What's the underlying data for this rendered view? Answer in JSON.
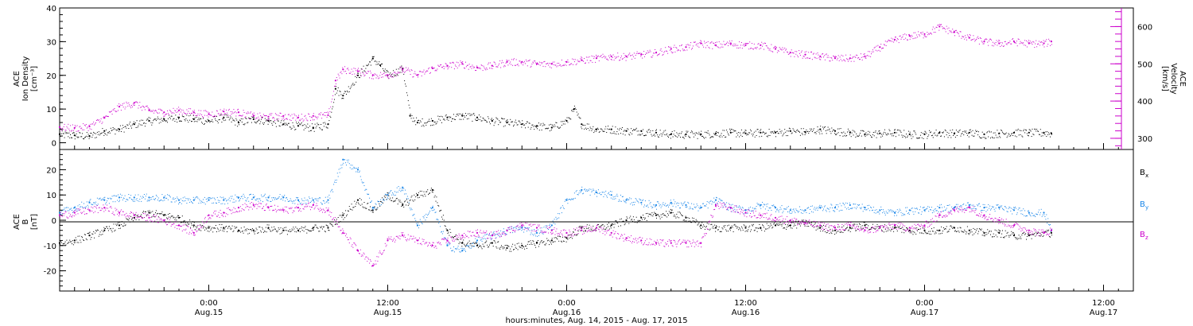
{
  "colors": {
    "density": "#000000",
    "velocity": "#cc00cc",
    "bx": "#000000",
    "by": "#1a86e8",
    "bz": "#cc00cc",
    "axis": "#000000"
  },
  "xaxis": {
    "title": "hours:minutes, Aug. 14, 2015 - Aug. 17, 2015",
    "ticks": [
      {
        "hour": 24,
        "time": "0:00",
        "date": "Aug.15"
      },
      {
        "hour": 36,
        "time": "12:00",
        "date": "Aug.15"
      },
      {
        "hour": 48,
        "time": "0:00",
        "date": "Aug.16"
      },
      {
        "hour": 60,
        "time": "12:00",
        "date": "Aug.16"
      },
      {
        "hour": 72,
        "time": "0:00",
        "date": "Aug.17"
      },
      {
        "hour": 84,
        "time": "12:00",
        "date": "Aug.17"
      }
    ]
  },
  "top_panel": {
    "left_label": [
      "ACE",
      "Ion Density",
      "[cm⁻³]"
    ],
    "right_label": [
      "ACE",
      "Velocity",
      "[km/s]"
    ],
    "left_ticks": [
      "0",
      "10",
      "20",
      "30",
      "40"
    ],
    "right_ticks": [
      "300",
      "400",
      "500",
      "600"
    ]
  },
  "bottom_panel": {
    "left_label": [
      "ACE",
      "B",
      "[nT]"
    ],
    "left_ticks": [
      "-20",
      "-10",
      "0",
      "10",
      "20"
    ],
    "legend": [
      {
        "key": "bx",
        "letter": "B",
        "sub": "x"
      },
      {
        "key": "by",
        "letter": "B",
        "sub": "y"
      },
      {
        "key": "bz",
        "letter": "B",
        "sub": "z"
      }
    ]
  },
  "chart_data": [
    {
      "type": "scatter",
      "panel": "top",
      "xlabel": "hours:minutes, Aug. 14, 2015 - Aug. 17, 2015",
      "xlim_hours_from_aug14_0000": [
        14,
        86
      ],
      "ylim_left": [
        -2,
        40
      ],
      "ylim_right": [
        270,
        650
      ],
      "series": [
        {
          "name": "Ion Density",
          "axis": "left",
          "unit": "cm^-3",
          "x_hours": [
            14,
            15,
            16,
            17,
            18,
            19,
            20,
            21,
            22,
            23,
            24,
            25,
            26,
            27,
            28,
            29,
            30,
            31,
            32,
            32.5,
            33,
            34,
            35,
            35.5,
            36,
            37,
            37.5,
            38,
            39,
            40,
            41,
            42,
            43,
            44,
            45,
            46,
            47,
            48,
            48.5,
            49,
            50,
            51,
            52,
            53,
            54,
            55,
            56,
            57,
            58,
            59,
            60,
            61,
            62,
            63,
            64,
            65,
            66,
            67,
            68,
            69,
            70,
            71,
            72,
            73,
            74,
            75,
            76,
            77,
            78,
            79,
            80,
            80.5
          ],
          "values": [
            2.5,
            2.2,
            2.0,
            3.5,
            4.0,
            5.5,
            6.5,
            7.0,
            7.5,
            7.0,
            6.5,
            7.5,
            6.0,
            7.0,
            6.5,
            5.5,
            5.0,
            4.5,
            5.5,
            16,
            14,
            20,
            25,
            23,
            20,
            22,
            8,
            6,
            6.5,
            7.5,
            8.0,
            7.5,
            6.5,
            6.0,
            5.5,
            5.0,
            4.5,
            6.5,
            10,
            5.5,
            4.0,
            4.0,
            3.5,
            3.5,
            3.0,
            2.5,
            2.5,
            2.5,
            2.8,
            3.0,
            2.8,
            3.0,
            3.0,
            3.5,
            3.2,
            4.0,
            3.5,
            3.0,
            2.5,
            2.8,
            3.0,
            2.5,
            2.5,
            3.0,
            2.8,
            3.0,
            2.5,
            2.8,
            3.0,
            3.0,
            3.0,
            2.8
          ]
        },
        {
          "name": "Velocity",
          "axis": "right",
          "unit": "km/s",
          "x_hours": [
            14,
            15,
            16,
            17,
            18,
            19,
            20,
            21,
            22,
            23,
            24,
            25,
            26,
            27,
            28,
            29,
            30,
            31,
            32,
            32.5,
            33,
            34,
            35,
            36,
            37,
            38,
            39,
            40,
            41,
            42,
            43,
            44,
            45,
            46,
            47,
            48,
            49,
            50,
            51,
            52,
            53,
            54,
            55,
            56,
            57,
            58,
            59,
            60,
            61,
            62,
            63,
            64,
            65,
            66,
            67,
            68,
            69,
            70,
            71,
            72,
            73,
            74,
            75,
            76,
            77,
            78,
            79,
            80,
            80.5
          ],
          "values": [
            330,
            328,
            332,
            355,
            385,
            395,
            375,
            370,
            375,
            370,
            365,
            372,
            370,
            360,
            358,
            360,
            356,
            360,
            362,
            455,
            485,
            480,
            470,
            470,
            485,
            470,
            488,
            495,
            500,
            490,
            495,
            505,
            505,
            500,
            500,
            505,
            510,
            515,
            520,
            520,
            525,
            530,
            540,
            545,
            555,
            550,
            555,
            550,
            550,
            540,
            530,
            525,
            520,
            515,
            515,
            520,
            545,
            565,
            575,
            580,
            600,
            585,
            570,
            560,
            555,
            560,
            555,
            555,
            560
          ]
        }
      ]
    },
    {
      "type": "scatter",
      "panel": "bottom",
      "xlim_hours_from_aug14_0000": [
        14,
        86
      ],
      "ylim": [
        -28,
        28
      ],
      "ylabel": "B [nT]",
      "series": [
        {
          "name": "Bx",
          "x_hours": [
            14,
            15,
            16,
            17,
            18,
            19,
            20,
            21,
            22,
            23,
            24,
            25,
            26,
            27,
            28,
            29,
            30,
            31,
            32,
            33,
            34,
            35,
            36,
            37,
            38,
            39,
            40,
            41,
            42,
            43,
            44,
            45,
            46,
            47,
            48,
            49,
            50,
            51,
            52,
            53,
            54,
            55,
            56,
            57,
            58,
            59,
            60,
            61,
            62,
            63,
            64,
            65,
            66,
            67,
            68,
            69,
            70,
            71,
            72,
            73,
            74,
            75,
            76,
            77,
            78,
            79,
            80,
            80.5
          ],
          "values": [
            -9,
            -8,
            -6,
            -4,
            -2,
            1,
            3,
            2,
            1,
            -2,
            -3,
            -3,
            -4,
            -4,
            -3,
            -4,
            -4,
            -3,
            -3,
            2,
            8,
            4,
            10,
            6,
            10,
            12,
            -4,
            -9,
            -10,
            -9,
            -11,
            -10,
            -9,
            -8,
            -7,
            -3,
            -3,
            -2,
            0,
            1,
            2,
            3,
            1,
            -2,
            -3,
            -3,
            -3,
            -3,
            -2,
            -2,
            -1,
            -3,
            -4,
            -3,
            -2,
            -3,
            -3,
            -4,
            -4,
            -4,
            -3,
            -4,
            -5,
            -5,
            -6,
            -6,
            -5,
            -5
          ]
        },
        {
          "name": "By",
          "x_hours": [
            14,
            15,
            16,
            17,
            18,
            19,
            20,
            21,
            22,
            23,
            24,
            25,
            26,
            27,
            28,
            29,
            30,
            31,
            32,
            33,
            34,
            35,
            36,
            37,
            38,
            39,
            40,
            41,
            42,
            43,
            44,
            45,
            46,
            47,
            48,
            49,
            50,
            51,
            52,
            53,
            54,
            55,
            56,
            57,
            58,
            59,
            60,
            61,
            62,
            63,
            64,
            65,
            66,
            67,
            68,
            69,
            70,
            71,
            72,
            73,
            74,
            75,
            76,
            77,
            78,
            79,
            80,
            80.5
          ],
          "values": [
            3,
            5,
            7,
            8,
            9,
            9,
            9,
            9,
            8,
            8,
            8,
            8,
            9,
            9,
            9,
            9,
            8,
            8,
            8,
            24,
            20,
            5,
            10,
            13,
            -2,
            5,
            -10,
            -12,
            -8,
            -6,
            -4,
            -3,
            -5,
            -2,
            8,
            12,
            11,
            10,
            8,
            7,
            6,
            7,
            6,
            5,
            8,
            5,
            4,
            6,
            5,
            4,
            4,
            5,
            5,
            6,
            5,
            4,
            3,
            4,
            4,
            5,
            5,
            6,
            5,
            5,
            4,
            3,
            3,
            -4
          ]
        },
        {
          "name": "Bz",
          "x_hours": [
            14,
            15,
            16,
            17,
            18,
            19,
            20,
            21,
            22,
            23,
            24,
            25,
            26,
            27,
            28,
            29,
            30,
            31,
            32,
            33,
            34,
            35,
            36,
            37,
            38,
            39,
            40,
            41,
            42,
            43,
            44,
            45,
            46,
            47,
            48,
            49,
            50,
            51,
            52,
            53,
            54,
            55,
            56,
            57,
            58,
            59,
            60,
            61,
            62,
            63,
            64,
            65,
            66,
            67,
            68,
            69,
            70,
            71,
            72,
            73,
            74,
            75,
            76,
            77,
            78,
            79,
            80,
            80.5
          ],
          "values": [
            2,
            3,
            4,
            5,
            3,
            2,
            1,
            0,
            -2,
            -5,
            2,
            3,
            5,
            6,
            5,
            4,
            5,
            6,
            4,
            -5,
            -12,
            -18,
            -8,
            -6,
            -8,
            -10,
            -8,
            -6,
            -5,
            -6,
            -4,
            -2,
            -3,
            -4,
            -5,
            -4,
            -3,
            -5,
            -7,
            -8,
            -9,
            -9,
            -9,
            -9,
            6,
            5,
            3,
            2,
            1,
            0,
            -1,
            -2,
            -3,
            -2,
            -4,
            -3,
            -2,
            -3,
            -2,
            2,
            4,
            5,
            2,
            0,
            -2,
            -4,
            -5,
            -4
          ]
        }
      ]
    }
  ]
}
